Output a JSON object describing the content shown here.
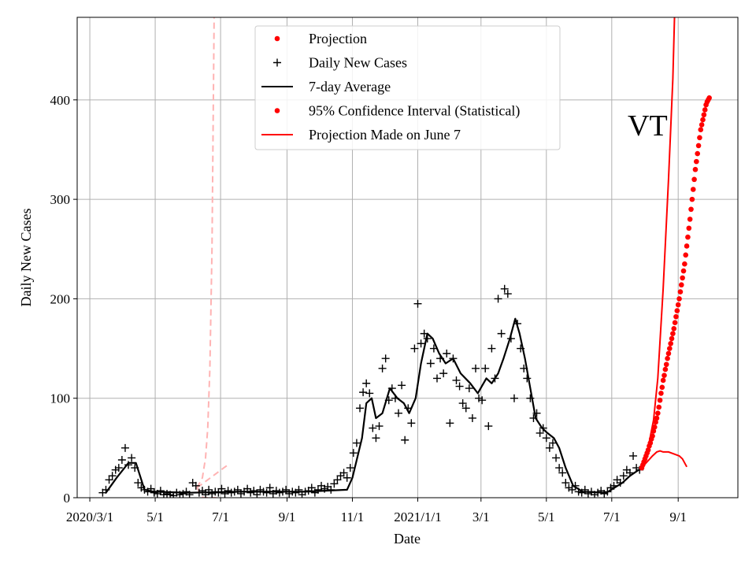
{
  "chart_data": {
    "type": "line",
    "state_label": "VT",
    "xlabel": "Date",
    "ylabel": "Daily New Cases",
    "x_units": "days since 2020-03-01",
    "xlim": [
      -11.8,
      604.7
    ],
    "ylim": [
      0,
      483
    ],
    "grid": true,
    "legend_placement": "top-center",
    "x_ticks": [
      {
        "day": 0,
        "label": "2020/3/1"
      },
      {
        "day": 61,
        "label": "5/1"
      },
      {
        "day": 122,
        "label": "7/1"
      },
      {
        "day": 184,
        "label": "9/1"
      },
      {
        "day": 245,
        "label": "11/1"
      },
      {
        "day": 306,
        "label": "2021/1/1"
      },
      {
        "day": 365,
        "label": "3/1"
      },
      {
        "day": 426,
        "label": "5/1"
      },
      {
        "day": 487,
        "label": "7/1"
      },
      {
        "day": 549,
        "label": "9/1"
      }
    ],
    "y_ticks": [
      {
        "value": 0,
        "label": "0"
      },
      {
        "value": 100,
        "label": "100"
      },
      {
        "value": 200,
        "label": "200"
      },
      {
        "value": 300,
        "label": "300"
      },
      {
        "value": 400,
        "label": "400"
      }
    ],
    "legend": [
      {
        "label": "Projection",
        "kind": "dot",
        "color": "#ff0000"
      },
      {
        "label": "Daily New Cases",
        "kind": "plus",
        "color": "#000000"
      },
      {
        "label": "7-day Average",
        "kind": "line",
        "color": "#000000"
      },
      {
        "label": "95% Confidence Interval (Statistical)",
        "kind": "dot",
        "color": "#ff0000"
      },
      {
        "label": "Projection Made on June 7",
        "kind": "line",
        "color": "#ff0000"
      }
    ],
    "daily_cases": {
      "start_day": 12,
      "step": 3,
      "values": [
        5,
        8,
        18,
        22,
        28,
        30,
        38,
        50,
        33,
        40,
        30,
        15,
        10,
        8,
        6,
        9,
        5,
        4,
        7,
        3,
        4,
        3,
        2,
        5,
        3,
        4,
        6,
        3,
        15,
        12,
        5,
        7,
        3,
        8,
        4,
        6,
        5,
        9,
        4,
        7,
        5,
        6,
        8,
        4,
        6,
        9,
        5,
        7,
        3,
        8,
        6,
        5,
        10,
        4,
        7,
        5,
        6,
        8,
        4,
        6,
        5,
        8,
        3,
        6,
        7,
        10,
        5,
        8,
        12,
        9,
        11,
        8,
        14,
        18,
        22,
        25,
        20,
        30,
        45,
        55,
        90,
        106,
        115,
        105,
        70,
        60,
        72,
        130,
        140,
        98,
        110,
        100,
        85,
        113,
        58,
        90,
        75,
        150,
        195,
        155,
        165,
        160,
        135,
        150,
        120,
        140,
        125,
        145,
        75,
        140,
        118,
        112,
        95,
        90,
        110,
        80,
        130,
        100,
        98,
        130,
        72,
        150,
        120,
        200,
        165,
        210,
        205,
        160,
        100,
        175,
        150,
        130,
        120,
        100,
        80,
        85,
        65,
        70,
        60,
        50,
        55,
        40,
        30,
        25,
        15,
        10,
        8,
        12,
        6,
        5,
        8,
        4,
        6,
        3,
        5,
        7,
        4,
        6,
        10,
        12,
        18,
        15,
        22,
        28,
        25,
        42,
        30,
        28
      ]
    },
    "seven_day_average": [
      [
        15,
        5
      ],
      [
        25,
        20
      ],
      [
        36,
        35
      ],
      [
        43,
        35
      ],
      [
        51,
        8
      ],
      [
        60,
        6
      ],
      [
        93,
        5
      ],
      [
        140,
        6
      ],
      [
        200,
        6
      ],
      [
        240,
        8
      ],
      [
        245,
        20
      ],
      [
        254,
        60
      ],
      [
        258,
        95
      ],
      [
        263,
        100
      ],
      [
        267,
        80
      ],
      [
        273,
        85
      ],
      [
        280,
        110
      ],
      [
        287,
        100
      ],
      [
        293,
        95
      ],
      [
        298,
        85
      ],
      [
        304,
        100
      ],
      [
        309,
        135
      ],
      [
        315,
        165
      ],
      [
        320,
        160
      ],
      [
        326,
        145
      ],
      [
        332,
        135
      ],
      [
        339,
        140
      ],
      [
        346,
        125
      ],
      [
        355,
        115
      ],
      [
        362,
        105
      ],
      [
        370,
        120
      ],
      [
        375,
        115
      ],
      [
        381,
        125
      ],
      [
        386,
        140
      ],
      [
        392,
        160
      ],
      [
        397,
        180
      ],
      [
        401,
        165
      ],
      [
        406,
        140
      ],
      [
        411,
        110
      ],
      [
        416,
        80
      ],
      [
        422,
        70
      ],
      [
        427,
        65
      ],
      [
        433,
        60
      ],
      [
        438,
        50
      ],
      [
        444,
        30
      ],
      [
        451,
        12
      ],
      [
        460,
        6
      ],
      [
        482,
        5
      ],
      [
        497,
        15
      ],
      [
        504,
        22
      ],
      [
        515,
        30
      ]
    ],
    "projection": {
      "start_day": 515,
      "values": [
        30,
        33,
        36,
        39,
        42,
        45,
        48,
        52,
        55,
        59,
        62,
        67,
        71,
        76,
        80,
        85,
        91,
        98,
        105,
        111,
        118,
        123,
        129,
        134,
        140,
        145,
        150,
        155,
        160,
        165,
        170,
        176,
        182,
        188,
        194,
        200,
        207,
        214,
        221,
        228,
        235,
        244,
        253,
        262,
        271,
        280,
        290,
        300,
        310,
        320,
        330,
        338,
        346,
        354,
        362,
        370,
        375,
        380,
        385,
        390,
        395,
        398,
        400,
        402
      ]
    },
    "ci_upper": [
      [
        515,
        30
      ],
      [
        520,
        45
      ],
      [
        526,
        78
      ],
      [
        530,
        120
      ],
      [
        535,
        210
      ],
      [
        540,
        320
      ],
      [
        544,
        421
      ],
      [
        546,
        500
      ]
    ],
    "ci_lower": [
      [
        515,
        30
      ],
      [
        520,
        36
      ],
      [
        525,
        42
      ],
      [
        529,
        46
      ],
      [
        532,
        47
      ],
      [
        535,
        46
      ],
      [
        540,
        46
      ],
      [
        545,
        44
      ],
      [
        550,
        42
      ],
      [
        553,
        39
      ],
      [
        557,
        31
      ]
    ],
    "june7_projection": [
      [
        [
          100,
          10
        ],
        [
          105,
          20
        ],
        [
          108,
          40
        ],
        [
          110,
          70
        ],
        [
          112,
          130
        ],
        [
          114,
          250
        ],
        [
          116,
          483
        ]
      ],
      [
        [
          100,
          10
        ],
        [
          105,
          14
        ],
        [
          110,
          18
        ],
        [
          115,
          22
        ],
        [
          120,
          26
        ],
        [
          125,
          30
        ],
        [
          129,
          33
        ]
      ],
      [
        [
          100,
          10
        ],
        [
          103,
          4
        ],
        [
          106,
          0
        ],
        [
          118,
          0
        ]
      ]
    ],
    "colors": {
      "projection": "#ff0000",
      "june7": "#ffb3b3",
      "cases": "#000000",
      "grid": "#b0b0b0"
    }
  }
}
